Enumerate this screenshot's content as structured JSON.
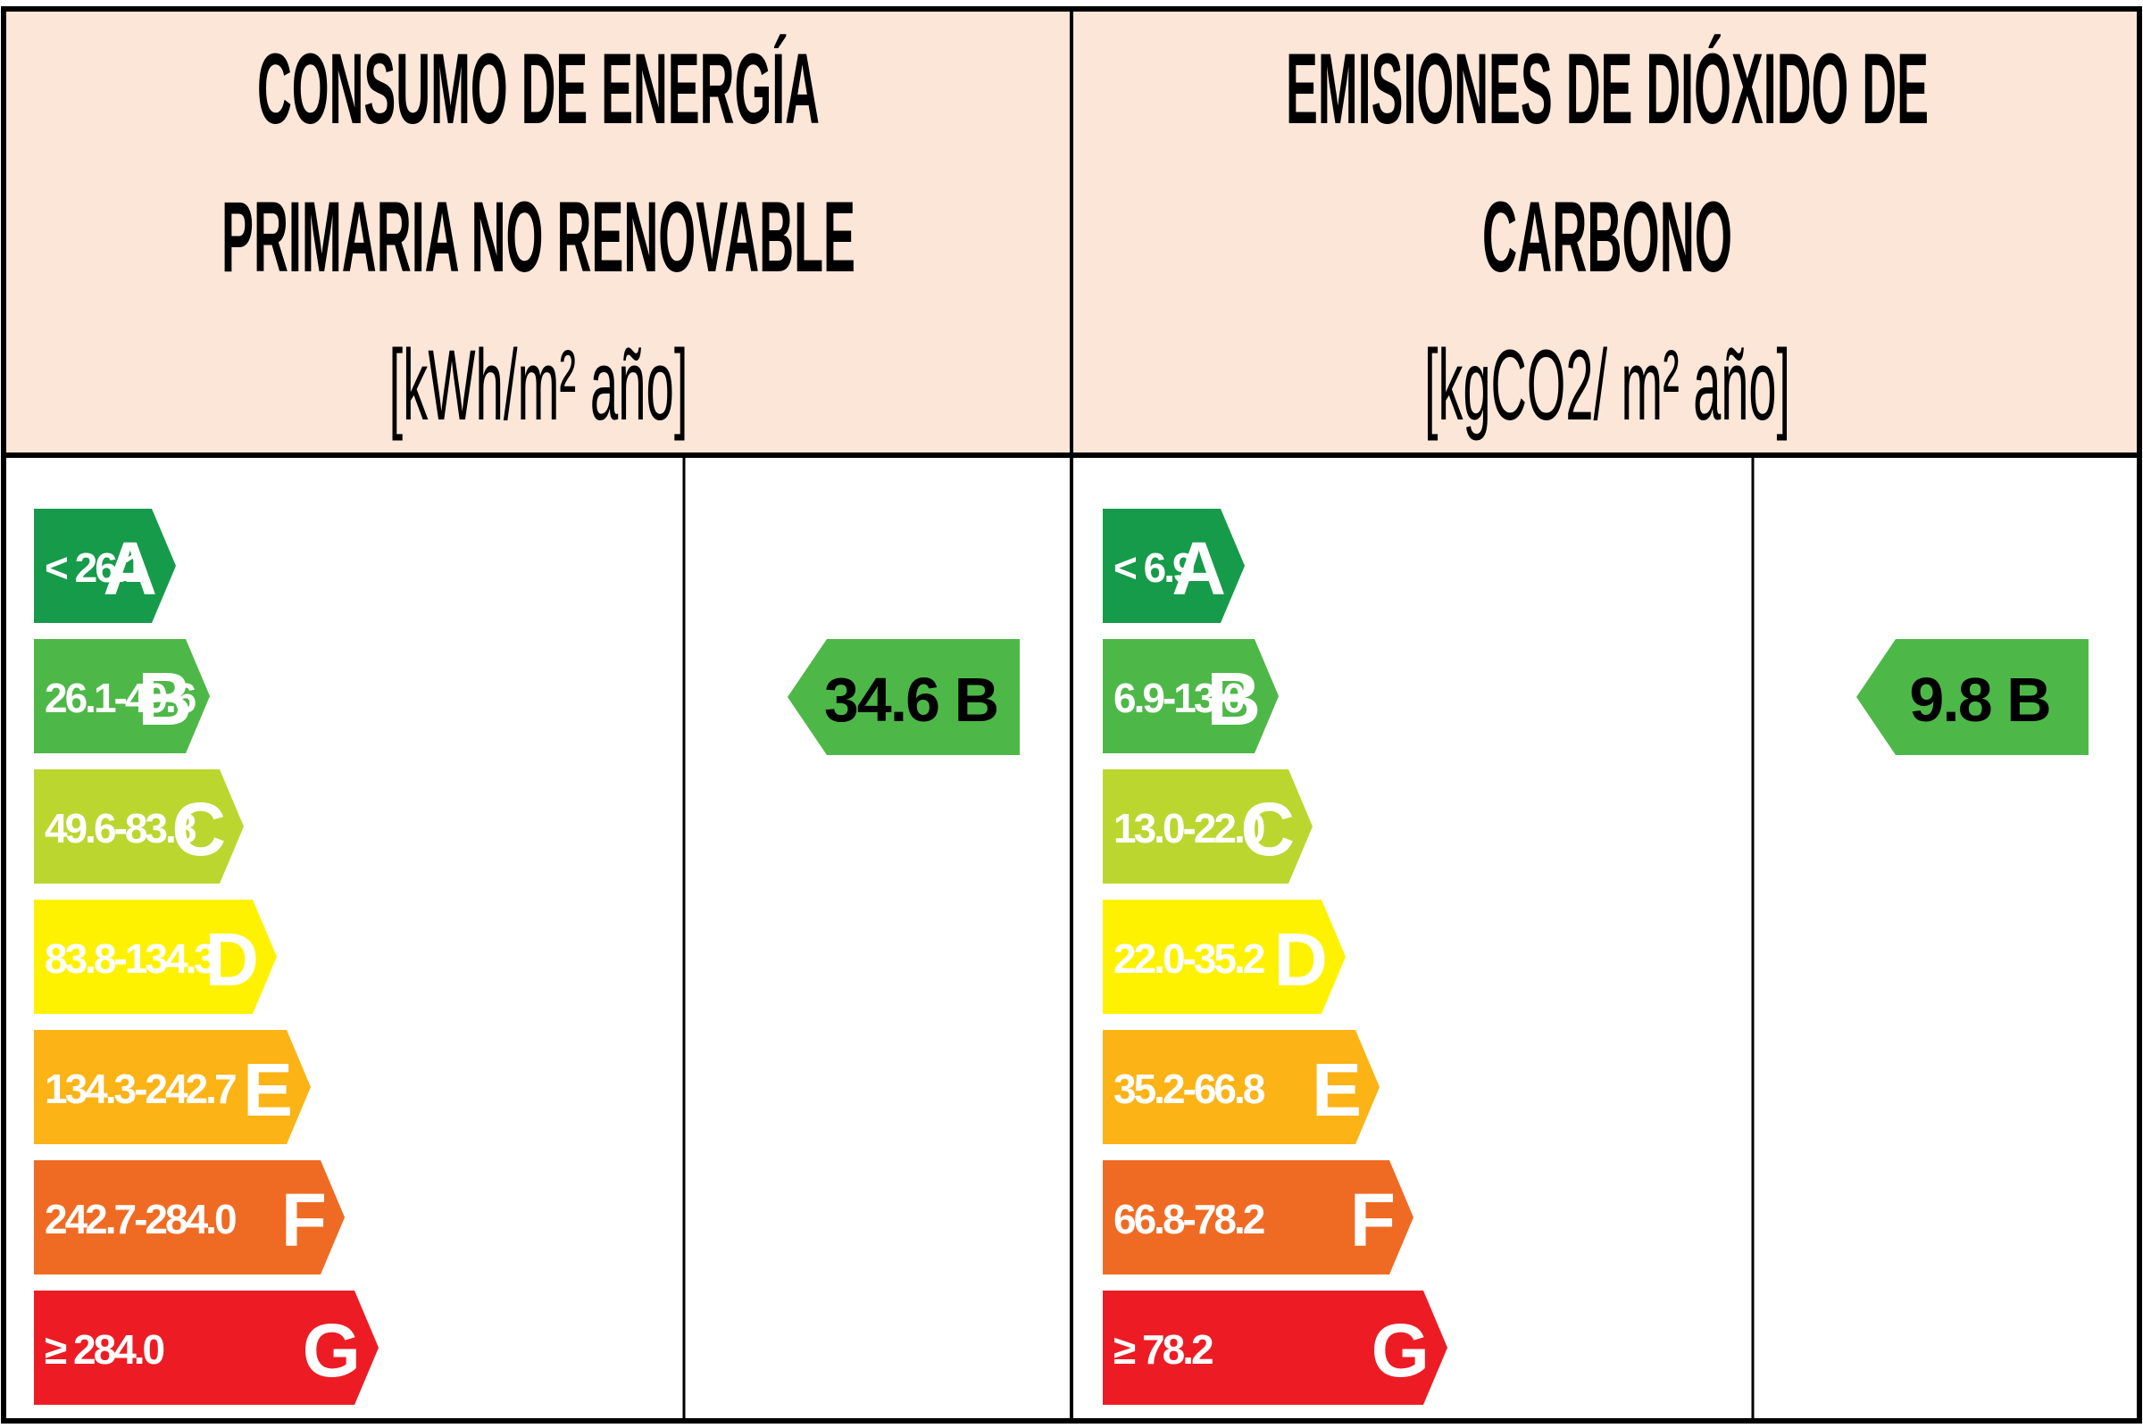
{
  "panels": [
    {
      "id": "energy",
      "heading": [
        "CONSUMO DE ENERGÍA",
        "PRIMARIA NO RENOVABLE",
        "[kWh/m² año]"
      ],
      "bands": [
        {
          "range": "< 26.1",
          "letter": "A"
        },
        {
          "range": "26.1-49.6",
          "letter": "B"
        },
        {
          "range": "49.6-83.8",
          "letter": "C"
        },
        {
          "range": "83.8-134.3",
          "letter": "D"
        },
        {
          "range": "134.3-242.7",
          "letter": "E"
        },
        {
          "range": "242.7-284.0",
          "letter": "F"
        },
        {
          "range": "≥ 284.0",
          "letter": "G"
        }
      ],
      "rating": {
        "value": 34.6,
        "label": "34.6 B",
        "class": "B"
      }
    },
    {
      "id": "co2",
      "heading": [
        "EMISIONES DE DIÓXIDO DE",
        "CARBONO",
        "[kgCO2/ m² año]"
      ],
      "bands": [
        {
          "range": "< 6.9",
          "letter": "A"
        },
        {
          "range": "6.9-13.0",
          "letter": "B"
        },
        {
          "range": "13.0-22.0",
          "letter": "C"
        },
        {
          "range": "22.0-35.2",
          "letter": "D"
        },
        {
          "range": "35.2-66.8",
          "letter": "E"
        },
        {
          "range": "66.8-78.2",
          "letter": "F"
        },
        {
          "range": "≥ 78.2",
          "letter": "G"
        }
      ],
      "rating": {
        "value": 9.8,
        "label": "9.8 B",
        "class": "B"
      }
    }
  ],
  "colors": {
    "header_background": "#fbe6d8",
    "border": "#000000",
    "band_colors": {
      "A": "#169b4a",
      "B": "#4db848",
      "C": "#bcd630",
      "D": "#fff200",
      "E": "#fcb316",
      "F": "#ef6b23",
      "G": "#ed1c24"
    }
  }
}
